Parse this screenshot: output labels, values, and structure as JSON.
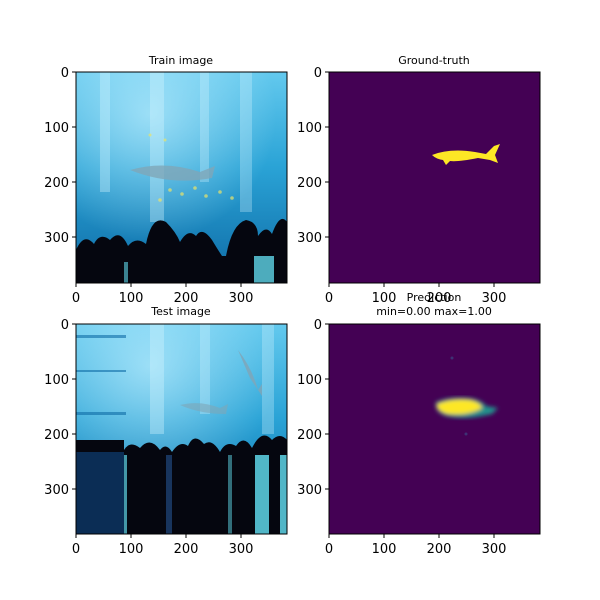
{
  "panels": {
    "train": {
      "title": "Train image",
      "xticks": [
        "0",
        "100",
        "200",
        "300"
      ],
      "yticks": [
        "0",
        "100",
        "200",
        "300"
      ]
    },
    "ground_truth": {
      "title": "Ground-truth",
      "xticks": [
        "0",
        "100",
        "200",
        "300"
      ],
      "yticks": [
        "0",
        "100",
        "200",
        "300"
      ],
      "background_color": "#440154",
      "mask_color": "#fde725"
    },
    "test": {
      "title": "Test image",
      "xticks": [
        "0",
        "100",
        "200",
        "300"
      ],
      "yticks": [
        "0",
        "100",
        "200",
        "300"
      ]
    },
    "prediction": {
      "title_line1": "Prediction",
      "title_line2": "min=0.00 max=1.00",
      "xticks": [
        "0",
        "100",
        "200",
        "300"
      ],
      "yticks": [
        "0",
        "100",
        "200",
        "300"
      ],
      "background_color": "#440154",
      "mask_color": "#fde725"
    }
  },
  "colors": {
    "water_light": "#4fc3e8",
    "water_mid": "#1a8fc4",
    "water_deep": "#0b4f86",
    "crowd": "#05060f",
    "tank_glass": "#5fd6e8"
  }
}
